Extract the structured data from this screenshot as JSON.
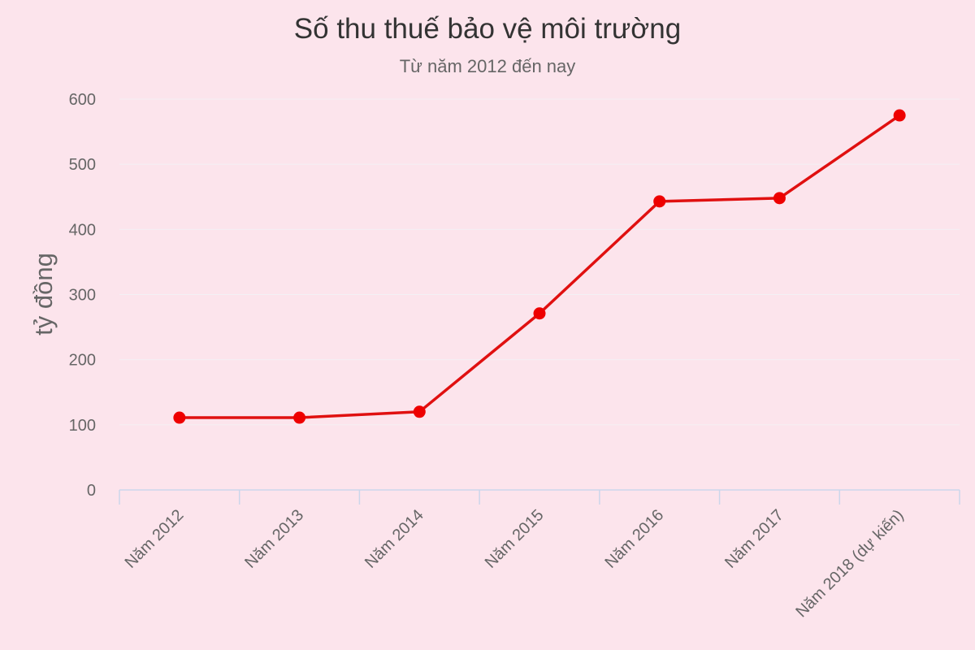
{
  "chart_data": {
    "type": "line",
    "title": "Số thu thuế bảo vệ môi trường",
    "subtitle": "Từ năm 2012 đến nay",
    "ylabel": "tỷ đồng",
    "categories": [
      "Năm 2012",
      "Năm 2013",
      "Năm 2014",
      "Năm 2015",
      "Năm 2016",
      "Năm 2017",
      "Năm 2018 (dự kiến)"
    ],
    "values": [
      111,
      111,
      120,
      271,
      443,
      448,
      575
    ],
    "ylim": [
      0,
      600
    ],
    "yticks": [
      0,
      100,
      200,
      300,
      400,
      500,
      600
    ],
    "grid": true,
    "legend": "none",
    "colors": {
      "background": "#fce4ec",
      "line": "#e01010",
      "marker": "#ee0000",
      "grid": "#f4f0f4",
      "axis": "#ccd6eb"
    }
  }
}
